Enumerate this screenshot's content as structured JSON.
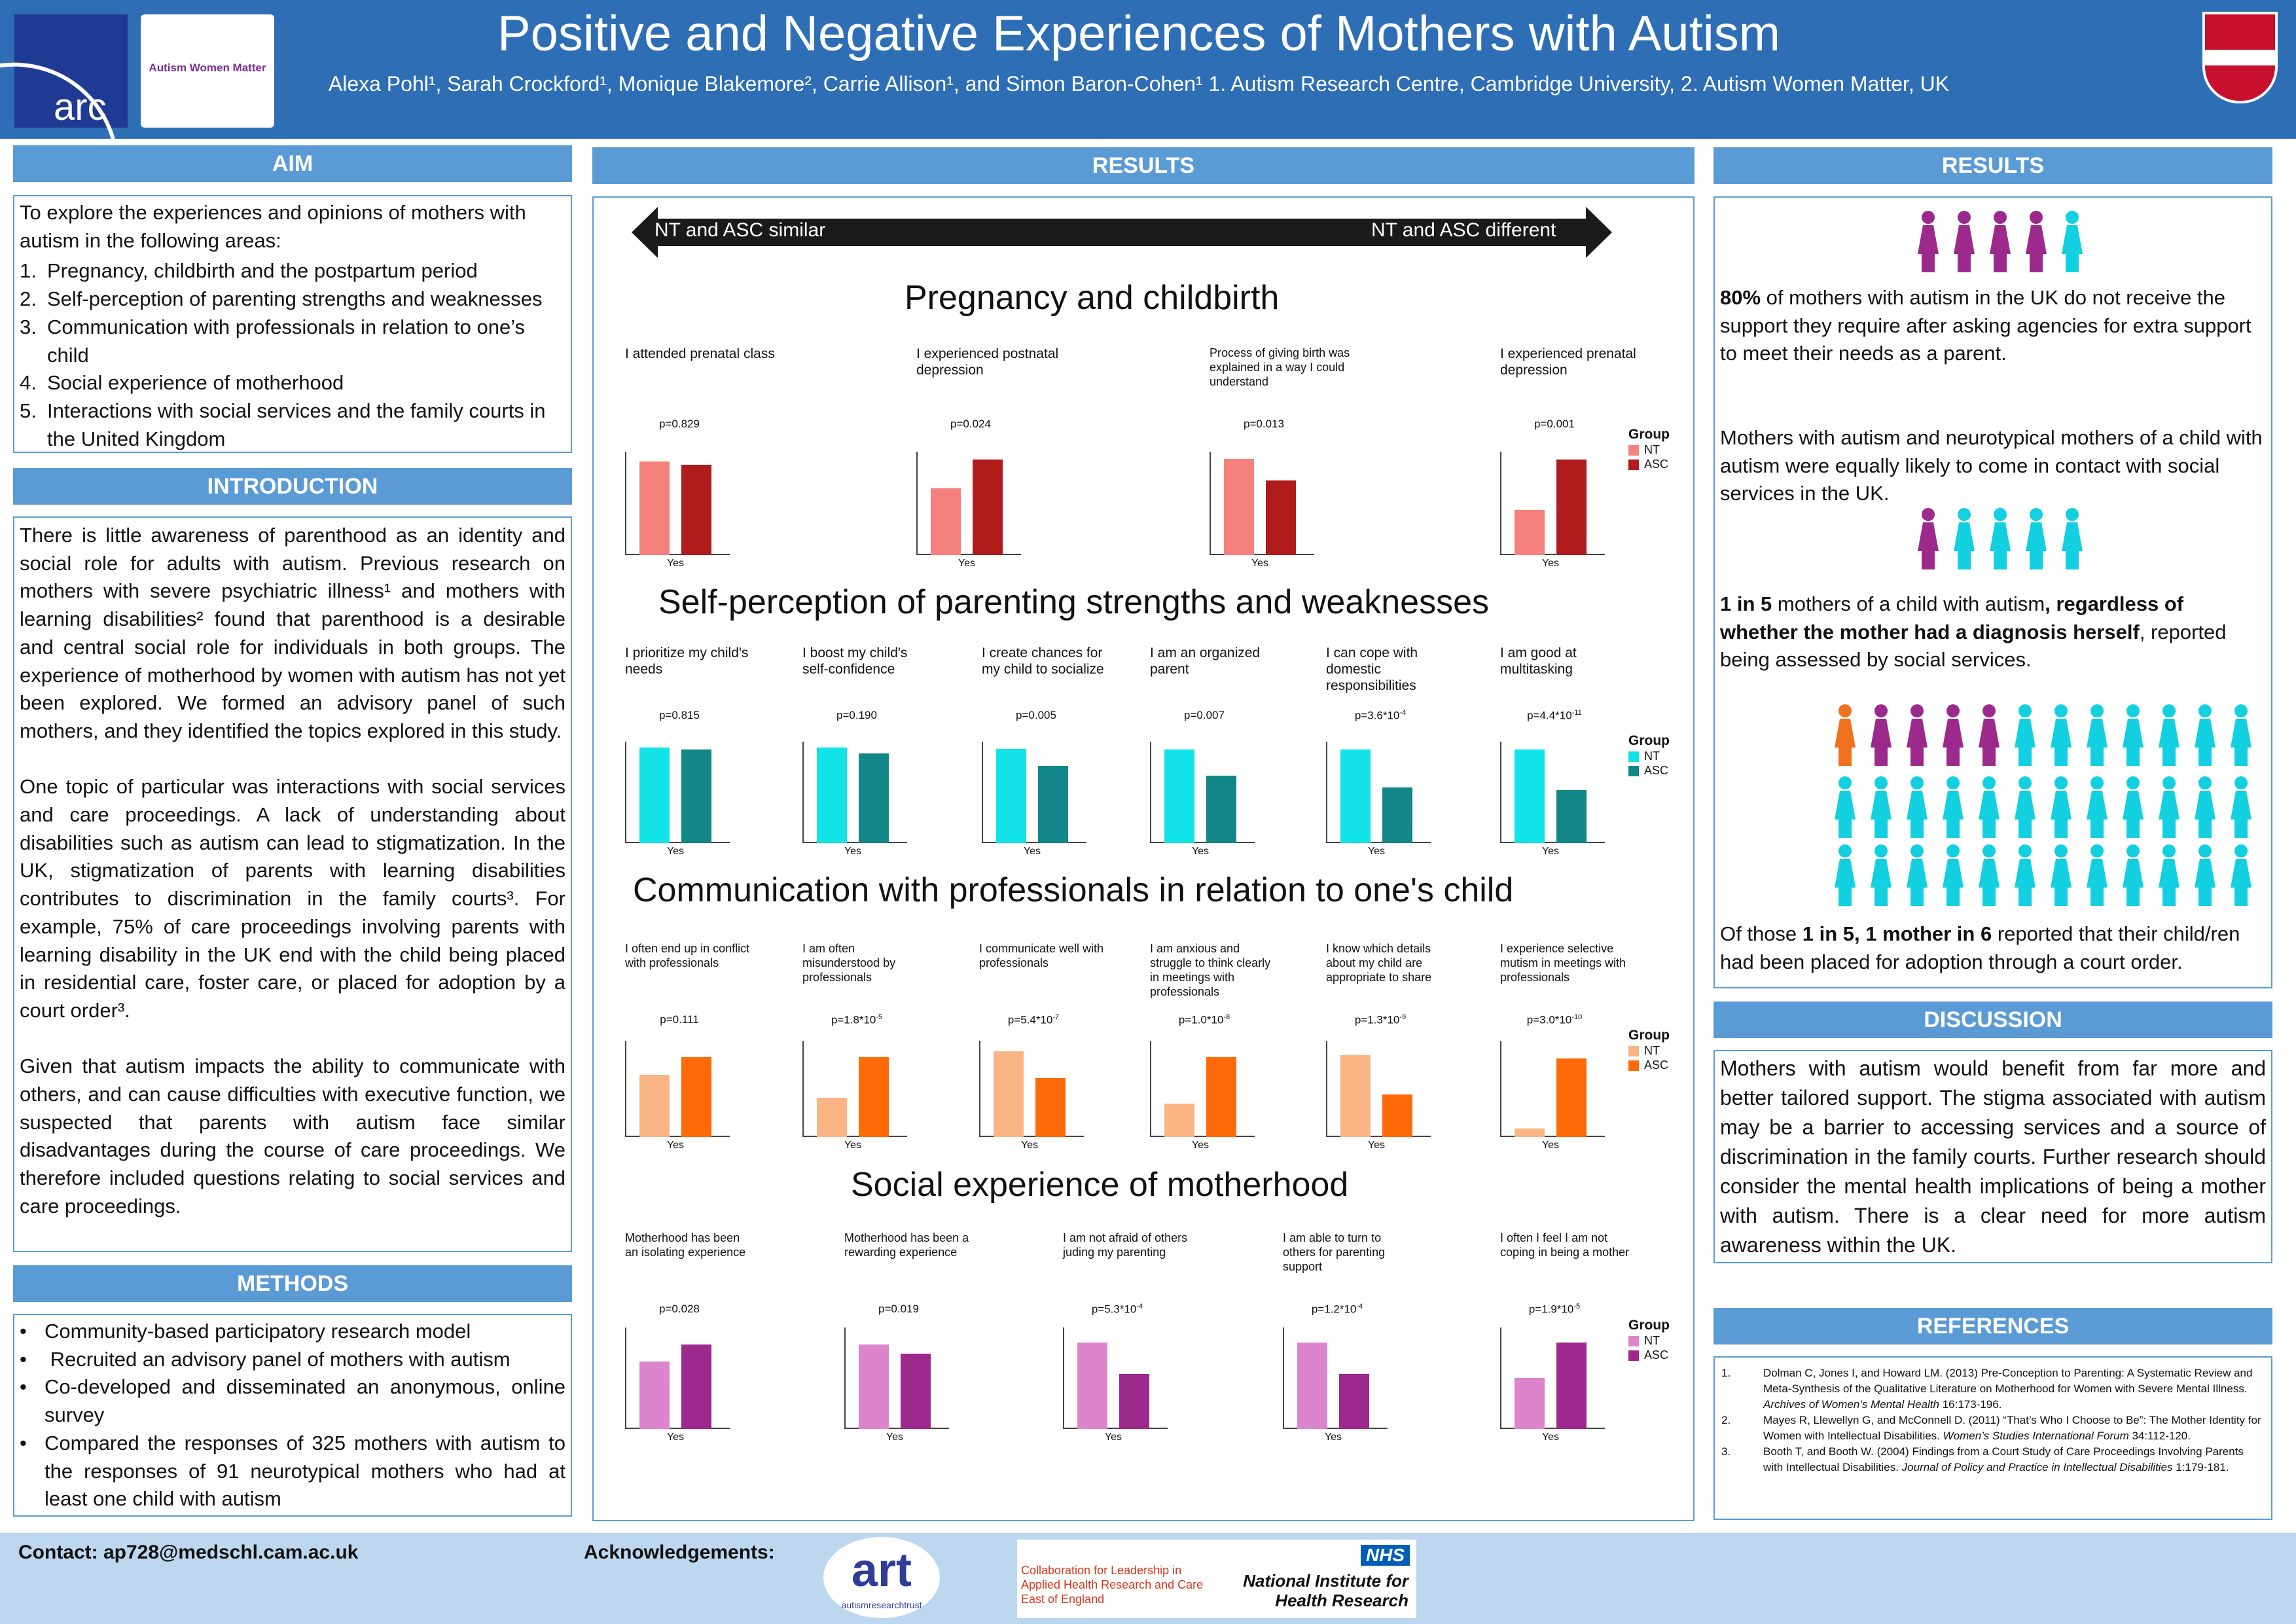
{
  "header": {
    "title": "Positive and Negative Experiences of Mothers with Autism",
    "authors": "Alexa Pohl¹, Sarah Crockford¹, Monique Blakemore², Carrie Allison¹, and Simon Baron-Cohen¹ 1. Autism Research Centre, Cambridge University,  2. Autism Women Matter, UK",
    "arc_logo_text": "arc",
    "awm_logo_text": "Autism Women Matter"
  },
  "aim": {
    "heading": "AIM",
    "intro": "To explore the experiences and opinions of mothers with autism in the following areas:",
    "items": [
      {
        "n": "1.",
        "text": "Pregnancy, childbirth and the postpartum period"
      },
      {
        "n": "2.",
        "text": "Self-perception of parenting strengths and weaknesses"
      },
      {
        "n": "3.",
        "text": "Communication with professionals in relation to one’s child"
      },
      {
        "n": "4.",
        "text": "Social experience of motherhood"
      },
      {
        "n": "5.",
        "text": "Interactions with social services and the family courts in the United Kingdom"
      }
    ]
  },
  "introduction": {
    "heading": "INTRODUCTION",
    "p1": "There is little awareness of parenthood as an identity and social role for adults with autism. Previous research on mothers with severe psychiatric illness¹ and mothers with learning disabilities² found that parenthood is a desirable and central social role for individuals in both groups. The experience of motherhood by women with autism has not yet been explored. We formed an advisory panel of such mothers, and they identified the topics explored in this study.",
    "p2": "One topic of particular was interactions with social services and care proceedings. A lack of understanding about disabilities such as autism can lead to stigmatization. In the UK, stigmatization of parents with learning disabilities contributes to discrimination in the family courts³. For example, 75% of care proceedings involving parents with learning disability in the UK end with the child being placed in residential care, foster care, or placed for adoption by a court order³.",
    "p3": "Given that autism impacts the ability to communicate with others, and can cause difficulties with executive function, we suspected that parents with autism face similar disadvantages during the course of care proceedings. We therefore included questions relating to social services and care proceedings."
  },
  "methods": {
    "heading": "METHODS",
    "items": [
      "Community-based participatory research model",
      " Recruited an advisory panel of mothers with autism",
      "Co-developed and disseminated an anonymous, online survey",
      "Compared the responses of 325 mothers with autism to the responses of 91 neurotypical mothers who had at least one child with autism"
    ]
  },
  "contact": "Contact: ap728@medschl.cam.ac.uk",
  "acknowledgements": "Acknowledgements:",
  "logos": {
    "art": "art",
    "art_sub": "autismresearchtrust",
    "clahrc": "Collaboration for Leadership in Applied Health Research and Care East of England",
    "nhs": "NHS",
    "nihr": "National Institute for Health Research"
  },
  "results_center": {
    "heading": "RESULTS",
    "arrow_left": "NT and ASC similar",
    "arrow_right": "NT and ASC different",
    "sections": [
      {
        "title": "Pregnancy  and childbirth",
        "legend": {
          "title": "Group",
          "items": [
            "NT",
            "ASC"
          ],
          "colors": [
            "#f4817b",
            "#b01c1c"
          ]
        },
        "charts": [
          {
            "label": "I attended prenatal class",
            "p": "p=0.829",
            "x": "Yes",
            "values": [
              0.95,
              0.92
            ]
          },
          {
            "label": "I experienced postnatal depression",
            "p": "p=0.024",
            "x": "Yes",
            "values": [
              0.68,
              0.97
            ]
          },
          {
            "label": "Process of giving birth was explained in a way I could understand",
            "p": "p=0.013",
            "x": "Yes",
            "values": [
              0.98,
              0.76
            ]
          },
          {
            "label": "I experienced prenatal depression",
            "p": "p=0.001",
            "x": "Yes",
            "values": [
              0.46,
              0.97
            ]
          }
        ]
      },
      {
        "title": "Self-perception of parenting strengths and weaknesses",
        "legend": {
          "title": "Group",
          "items": [
            "NT",
            "ASC"
          ],
          "colors": [
            "#12e3e6",
            "#128688"
          ]
        },
        "charts": [
          {
            "label": "I prioritize my child's needs",
            "p": "p=0.815",
            "x": "Yes",
            "values": [
              0.99,
              0.97
            ]
          },
          {
            "label": "I boost my child's self-confidence",
            "p": "p=0.190",
            "x": "Yes",
            "values": [
              0.99,
              0.93
            ]
          },
          {
            "label": "I create chances for my child to socialize",
            "p": "p=0.005",
            "x": "Yes",
            "values": [
              0.98,
              0.8
            ]
          },
          {
            "label": "I am an organized parent",
            "p": "p=0.007",
            "x": "Yes",
            "values": [
              0.97,
              0.7
            ]
          },
          {
            "label": "I can cope with domestic responsibilities",
            "p": "p=3.6*10",
            "p_exp": "-4",
            "x": "Yes",
            "values": [
              0.97,
              0.58
            ]
          },
          {
            "label": "I am good at multitasking",
            "p": "p=4.4*10",
            "p_exp": "-11",
            "x": "Yes",
            "values": [
              0.97,
              0.55
            ]
          }
        ]
      },
      {
        "title": "Communication with professionals in relation to one's child",
        "legend": {
          "title": "Group",
          "items": [
            "NT",
            "ASC"
          ],
          "colors": [
            "#fbb584",
            "#ff6a08"
          ]
        },
        "charts": [
          {
            "label": "I often end up in conflict with professionals",
            "p": "p=0.111",
            "x": "Yes",
            "values": [
              0.68,
              0.88
            ]
          },
          {
            "label": "I am often misunderstood by professionals",
            "p": "p=1.8*10",
            "p_exp": "-5",
            "x": "Yes",
            "values": [
              0.43,
              0.88
            ]
          },
          {
            "label": "I communicate well with professionals",
            "p": "p=5.4*10",
            "p_exp": "-7",
            "x": "Yes",
            "values": [
              0.94,
              0.65
            ]
          },
          {
            "label": "I am anxious and struggle to think clearly in meetings with professionals",
            "p": "p=1.0*10",
            "p_exp": "-8",
            "x": "Yes",
            "values": [
              0.37,
              0.88
            ]
          },
          {
            "label": "I know which details about my child are appropriate to share",
            "p": "p=1.3*10",
            "p_exp": "-9",
            "x": "Yes",
            "values": [
              0.9,
              0.47
            ]
          },
          {
            "label": "I experience selective mutism in meetings with professionals",
            "p": "p=3.0*10",
            "p_exp": "-10",
            "x": "Yes",
            "values": [
              0.09,
              0.86
            ]
          }
        ]
      },
      {
        "title": "Social experience of motherhood",
        "legend": {
          "title": "Group",
          "items": [
            "NT",
            "ASC"
          ],
          "colors": [
            "#dc85cc",
            "#9c2a8c"
          ]
        },
        "charts": [
          {
            "label": "Motherhood has been an isolating experience",
            "p": "p=0.028",
            "x": "Yes",
            "values": [
              0.7,
              0.88
            ]
          },
          {
            "label": "Motherhood has been a rewarding experience",
            "p": "p=0.019",
            "x": "Yes",
            "values": [
              0.88,
              0.78
            ]
          },
          {
            "label": "I am not afraid of others juding my parenting",
            "p": "p=5.3*10",
            "p_exp": "-4",
            "x": "Yes",
            "values": [
              0.9,
              0.57
            ]
          },
          {
            "label": "I am able to turn to others for parenting support",
            "p": "p=1.2*10",
            "p_exp": "-4",
            "x": "Yes",
            "values": [
              0.9,
              0.57
            ]
          },
          {
            "label": "I often I feel I am not coping in being a mother",
            "p": "p=1.9*10",
            "p_exp": "-5",
            "x": "Yes",
            "values": [
              0.53,
              0.9
            ]
          }
        ]
      }
    ]
  },
  "results_right": {
    "heading": "RESULTS",
    "s1_bold": "80%",
    "s1_text": " of mothers with autism in the UK do not receive the support they require after asking agencies for extra support to meet their needs as a parent.",
    "s2_text": "Mothers with autism and neurotypical mothers of a child with autism were equally likely to come in contact with social services in the UK.",
    "s3_a": "1 in 5",
    "s3_b": " mothers of a child with autism",
    "s3_c": ", regardless of whether the mother had a diagnosis herself",
    "s3_d": ", reported being assessed by social services.",
    "s4_a": "Of those ",
    "s4_b": "1 in 5, 1 mother in 6",
    "s4_c": " reported that their child/ren had been placed for adoption through a court order.",
    "colors": {
      "purple": "#9c2a8c",
      "cyan": "#12d0e0",
      "orange": "#f0701e"
    }
  },
  "discussion": {
    "heading": "DISCUSSION",
    "text": "Mothers with autism would benefit from far more and better tailored support. The stigma associated with autism may be a barrier to accessing services and a source of discrimination in the family courts. Further research should consider the mental health implications of being a mother with autism. There is a clear need for more autism awareness within the UK."
  },
  "references": {
    "heading": "REFERENCES",
    "items": [
      {
        "n": "1.",
        "a": "Dolman C, Jones I, and Howard LM. (2013) Pre-Conception to Parenting: A Systematic Review and Meta-Synthesis of the Qualitative Literature on Motherhood for Women with Severe Mental Illness. ",
        "j": "Archives of Women’s Mental Health",
        "b": " 16:173-196."
      },
      {
        "n": "2.",
        "a": "Mayes R, Llewellyn G, and McConnell D. (2011) “That’s Who I Choose to Be”: The Mother Identity for Women with Intellectual Disabilities. ",
        "j": "Women’s Studies International Forum",
        "b": " 34:112-120."
      },
      {
        "n": "3.",
        "a": "Booth T, and Booth W. (2004) Findings from a Court Study of Care Proceedings Involving Parents with Intellectual Disabilities. ",
        "j": "Journal of Policy and Practice in Intellectual Disabilities",
        "b": " 1:179-181."
      }
    ]
  }
}
